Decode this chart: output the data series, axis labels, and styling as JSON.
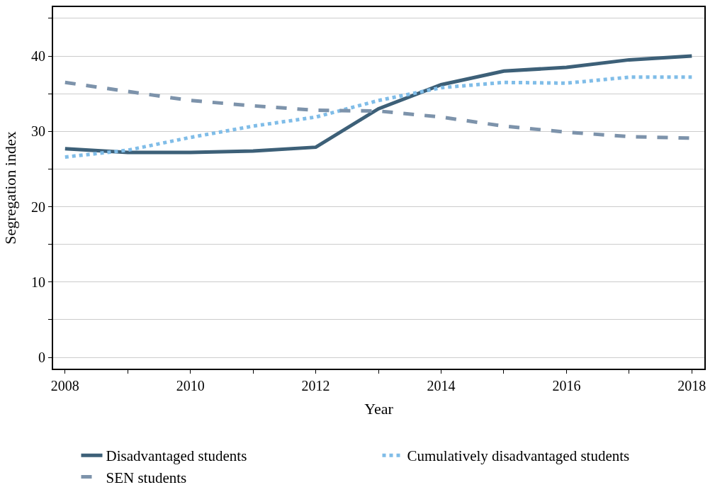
{
  "chart_data": {
    "type": "line",
    "xlabel": "Year",
    "ylabel": "Segregation index",
    "x": [
      2008,
      2009,
      2010,
      2011,
      2012,
      2013,
      2014,
      2015,
      2016,
      2017,
      2018
    ],
    "series": [
      {
        "name": "Disadvantaged students",
        "color": "#3d6078",
        "line_style": "solid",
        "values": [
          27.7,
          27.2,
          27.2,
          27.4,
          27.9,
          33.0,
          36.2,
          38.0,
          38.5,
          39.5,
          40.0
        ]
      },
      {
        "name": "Cumulatively disadvantaged students",
        "color": "#80bde8",
        "line_style": "dotted",
        "values": [
          26.6,
          27.5,
          29.2,
          30.7,
          31.9,
          34.1,
          35.8,
          36.5,
          36.4,
          37.2,
          37.2
        ]
      },
      {
        "name": "SEN students",
        "color": "#7d93ab",
        "line_style": "dashed",
        "values": [
          36.5,
          35.3,
          34.1,
          33.4,
          32.8,
          32.7,
          31.9,
          30.7,
          29.9,
          29.3,
          29.1
        ]
      }
    ],
    "xlim": [
      2007.81,
      2018.2
    ],
    "ylim": [
      -1.5,
      46.5
    ],
    "xticks": [
      2008,
      {
        "value": 2009,
        "label": null
      },
      2010,
      {
        "value": 2011,
        "label": null
      },
      2012,
      {
        "value": 2013,
        "label": null
      },
      2014,
      {
        "value": 2015,
        "label": null
      },
      2016,
      {
        "value": 2017,
        "label": null
      },
      2018
    ],
    "yticks": [
      0,
      {
        "value": 5,
        "label": null
      },
      10,
      {
        "value": 15,
        "label": null
      },
      20,
      {
        "value": 25,
        "label": null
      },
      30,
      {
        "value": 35,
        "label": null
      },
      40,
      {
        "value": 45,
        "label": null
      }
    ],
    "grid": "y",
    "legend": "bottom",
    "marker": "none"
  }
}
